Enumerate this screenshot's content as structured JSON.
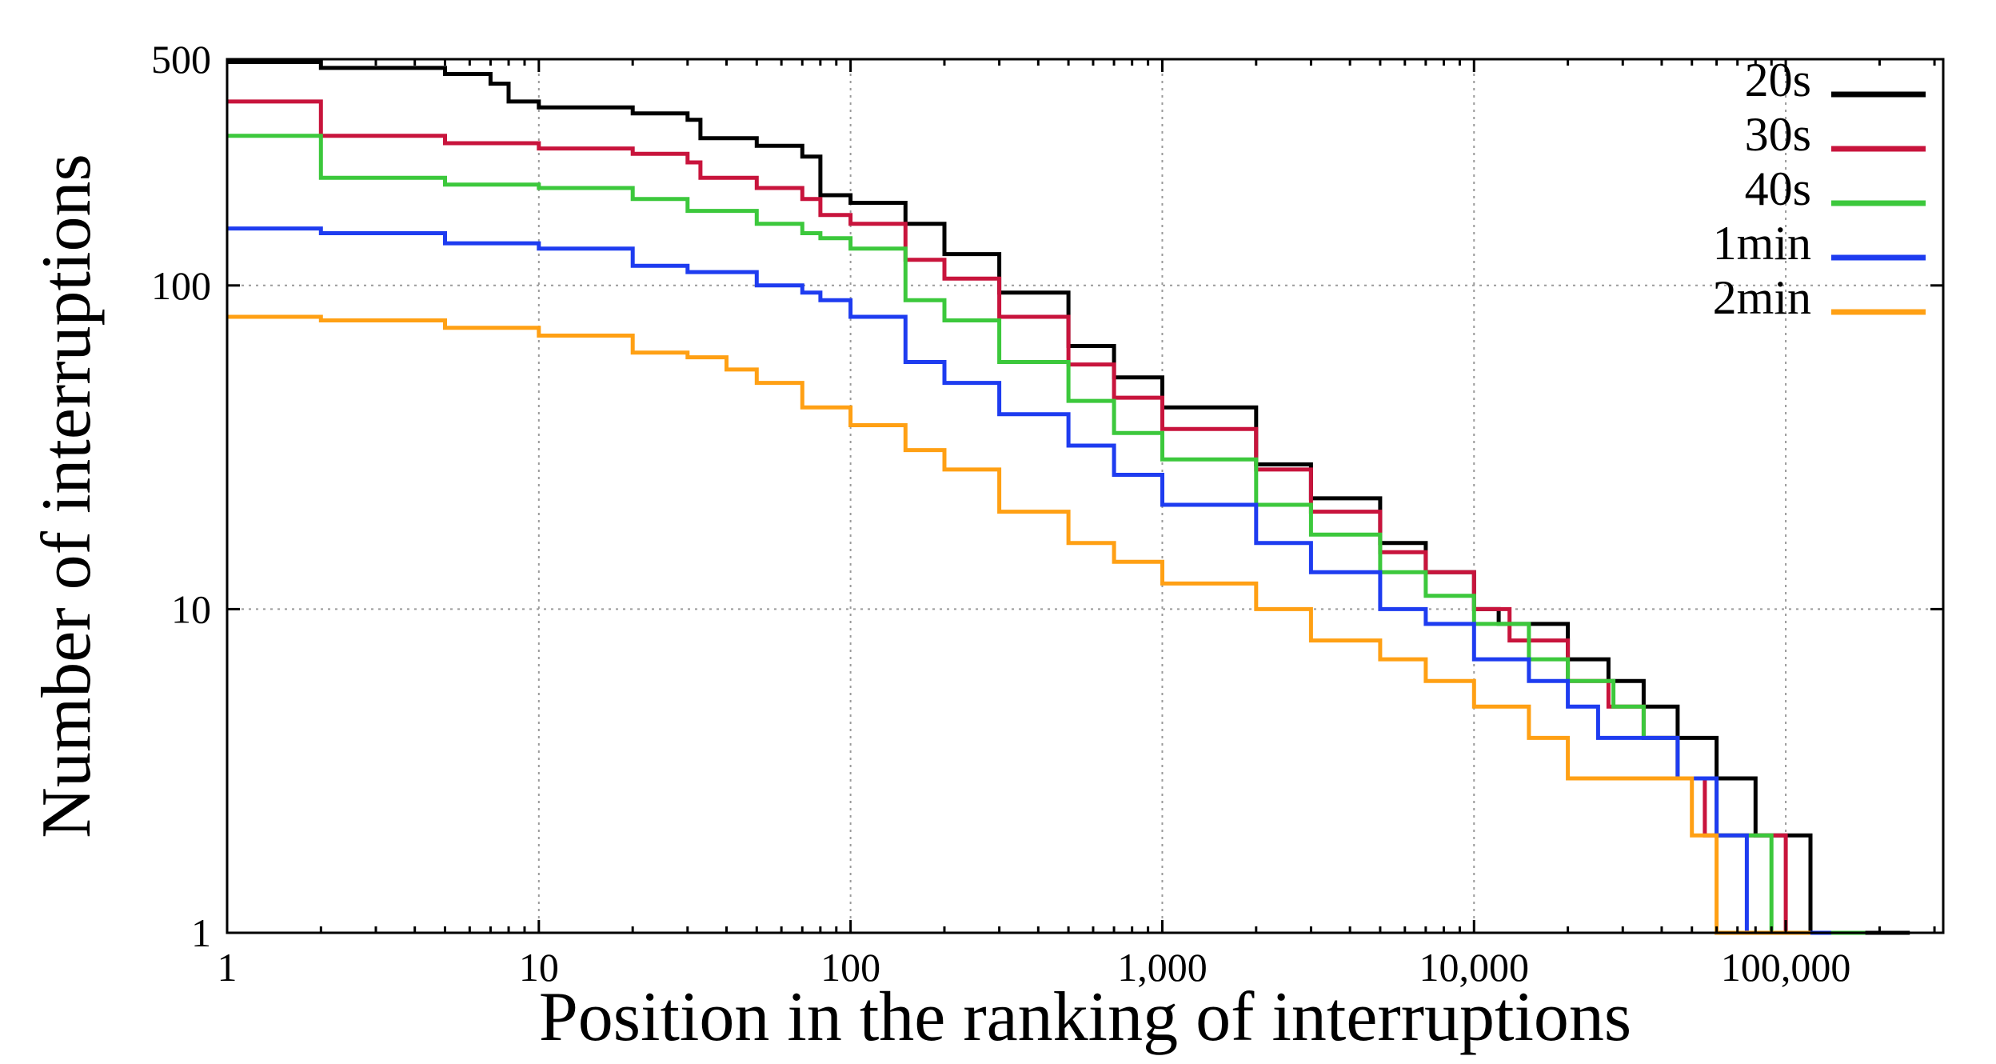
{
  "chart_data": {
    "type": "line",
    "title": "",
    "xlabel": "Position in the ranking of interruptions",
    "ylabel": "Number of interruptions",
    "xscale": "log",
    "yscale": "log",
    "xlim": [
      1,
      320000
    ],
    "ylim": [
      1,
      500
    ],
    "grid": true,
    "legend_position": "top-right",
    "x_ticks": [
      {
        "value": 1,
        "label": "1"
      },
      {
        "value": 10,
        "label": "10"
      },
      {
        "value": 100,
        "label": "100"
      },
      {
        "value": 1000,
        "label": "1,000"
      },
      {
        "value": 10000,
        "label": "10,000"
      },
      {
        "value": 100000,
        "label": "100,000"
      }
    ],
    "y_ticks": [
      {
        "value": 1,
        "label": "1"
      },
      {
        "value": 10,
        "label": "10"
      },
      {
        "value": 100,
        "label": "100"
      },
      {
        "value": 500,
        "label": "500"
      }
    ],
    "series": [
      {
        "name": "20s",
        "color": "#000000",
        "x": [
          1,
          2,
          5,
          7,
          8,
          10,
          20,
          30,
          33,
          50,
          70,
          80,
          100,
          150,
          200,
          300,
          500,
          700,
          1000,
          2000,
          3000,
          5000,
          7000,
          10000,
          12000,
          20000,
          27000,
          35000,
          45000,
          60000,
          80000,
          120000,
          140000,
          250000
        ],
        "y": [
          490,
          470,
          450,
          420,
          370,
          355,
          340,
          325,
          285,
          270,
          250,
          190,
          180,
          155,
          125,
          95,
          65,
          52,
          42,
          28,
          22,
          16,
          13,
          10,
          9,
          7,
          6,
          5,
          4,
          3,
          2,
          1,
          1,
          1
        ]
      },
      {
        "name": "30s",
        "color": "#c8143c",
        "x": [
          1,
          2,
          5,
          10,
          20,
          30,
          33,
          50,
          70,
          80,
          100,
          150,
          200,
          300,
          500,
          700,
          1000,
          2000,
          3000,
          5000,
          7000,
          10000,
          13000,
          20000,
          27000,
          35000,
          45000,
          55000,
          70000,
          100000,
          150000
        ],
        "y": [
          370,
          290,
          275,
          265,
          255,
          240,
          215,
          200,
          185,
          165,
          155,
          120,
          105,
          80,
          57,
          45,
          36,
          27,
          20,
          15,
          13,
          10,
          8,
          6,
          5,
          4,
          3,
          2,
          2,
          1,
          1
        ]
      },
      {
        "name": "40s",
        "color": "#3cc83c",
        "x": [
          1,
          2,
          5,
          10,
          20,
          30,
          50,
          70,
          80,
          100,
          150,
          200,
          300,
          500,
          700,
          1000,
          2000,
          3000,
          5000,
          7000,
          10000,
          15000,
          20000,
          28000,
          35000,
          45000,
          60000,
          70000,
          90000,
          180000
        ],
        "y": [
          290,
          215,
          205,
          200,
          185,
          170,
          155,
          145,
          140,
          130,
          90,
          78,
          58,
          44,
          35,
          29,
          21,
          17,
          13,
          11,
          9,
          7,
          6,
          5,
          4,
          3,
          2,
          2,
          1,
          1
        ]
      },
      {
        "name": "1min",
        "color": "#1e3cf0",
        "x": [
          1,
          2,
          5,
          10,
          20,
          30,
          50,
          70,
          80,
          100,
          150,
          200,
          300,
          500,
          700,
          1000,
          2000,
          3000,
          5000,
          7000,
          10000,
          15000,
          20000,
          25000,
          35000,
          45000,
          60000,
          75000,
          140000
        ],
        "y": [
          150,
          145,
          135,
          130,
          115,
          110,
          100,
          95,
          90,
          80,
          58,
          50,
          40,
          32,
          26,
          21,
          16,
          13,
          10,
          9,
          7,
          6,
          5,
          4,
          4,
          3,
          2,
          1,
          1
        ]
      },
      {
        "name": "2min",
        "color": "#ffa014",
        "x": [
          1,
          2,
          5,
          10,
          20,
          30,
          40,
          50,
          70,
          100,
          150,
          200,
          300,
          500,
          700,
          1000,
          2000,
          3000,
          5000,
          7000,
          10000,
          15000,
          20000,
          30000,
          50000,
          60000,
          120000
        ],
        "y": [
          80,
          78,
          74,
          70,
          62,
          60,
          55,
          50,
          42,
          37,
          31,
          27,
          20,
          16,
          14,
          12,
          10,
          8,
          7,
          6,
          5,
          4,
          3,
          3,
          2,
          1,
          1
        ]
      }
    ]
  }
}
